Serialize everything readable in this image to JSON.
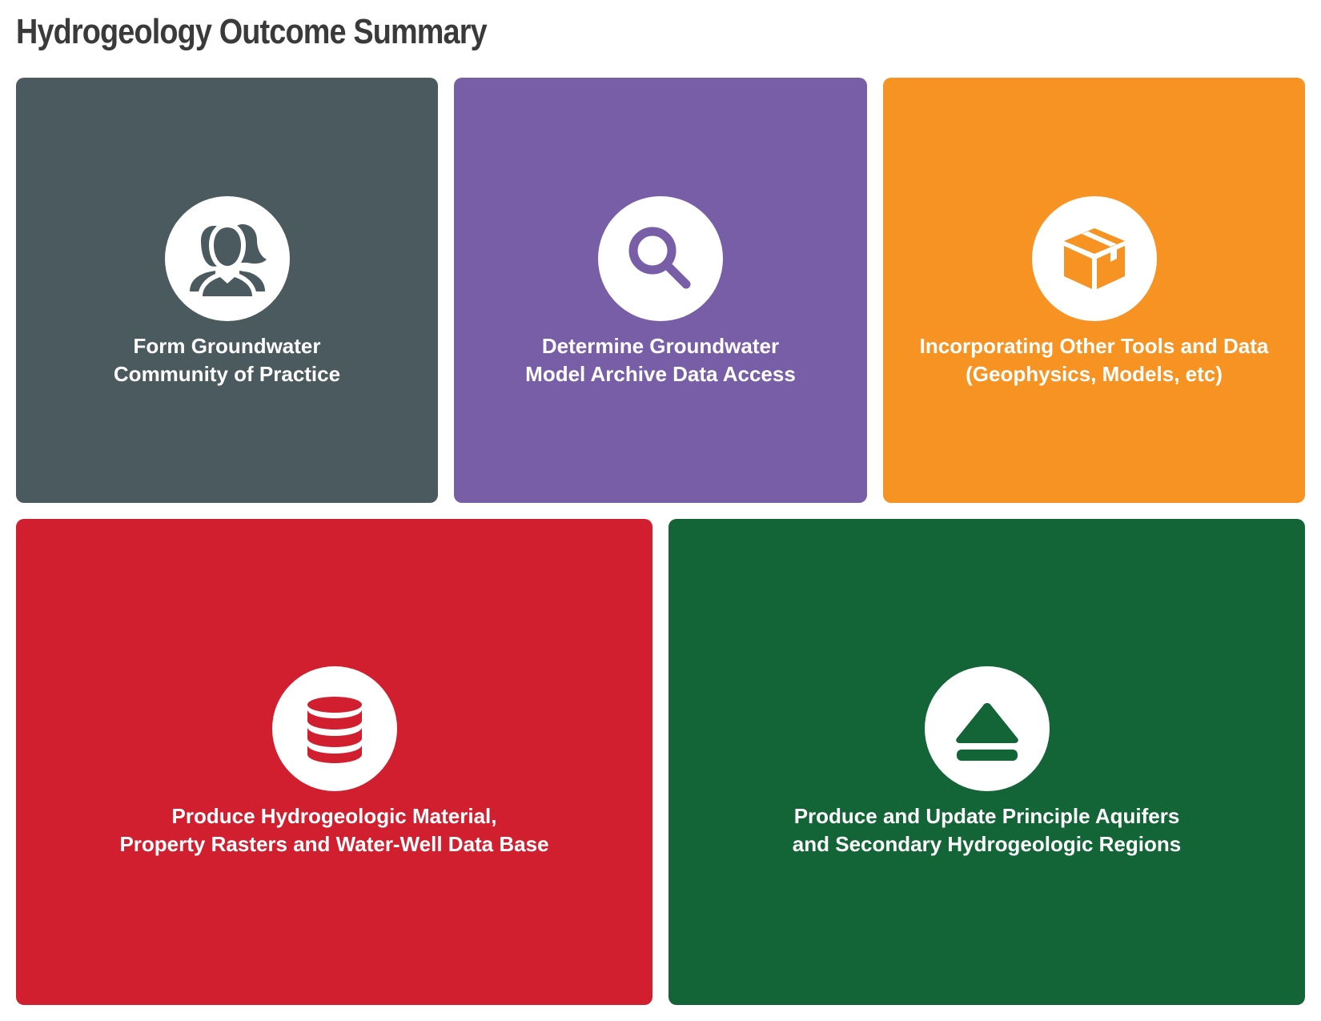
{
  "title": "Hydrogeology Outcome Summary",
  "colors": {
    "title": "#3a3a3a",
    "card_1": "#4b5a5e",
    "card_2": "#785ea7",
    "card_3": "#f69322",
    "card_4": "#d21f2f",
    "card_5": "#136537",
    "icon_background": "#ffffff"
  },
  "cards": [
    {
      "icon": "people-group-icon",
      "lines": [
        "Form Groundwater",
        "Community of Practice"
      ]
    },
    {
      "icon": "magnifier-icon",
      "lines": [
        "Determine Groundwater",
        "Model Archive Data Access"
      ]
    },
    {
      "icon": "box-package-icon",
      "lines": [
        "Incorporating Other Tools and Data",
        "(Geophysics, Models, etc)"
      ]
    },
    {
      "icon": "database-icon",
      "lines": [
        "Produce Hydrogeologic Material,",
        "Property Rasters and Water-Well Data Base"
      ]
    },
    {
      "icon": "eject-icon",
      "lines": [
        "Produce and Update Principle Aquifers",
        "and Secondary Hydrogeologic Regions"
      ]
    }
  ]
}
